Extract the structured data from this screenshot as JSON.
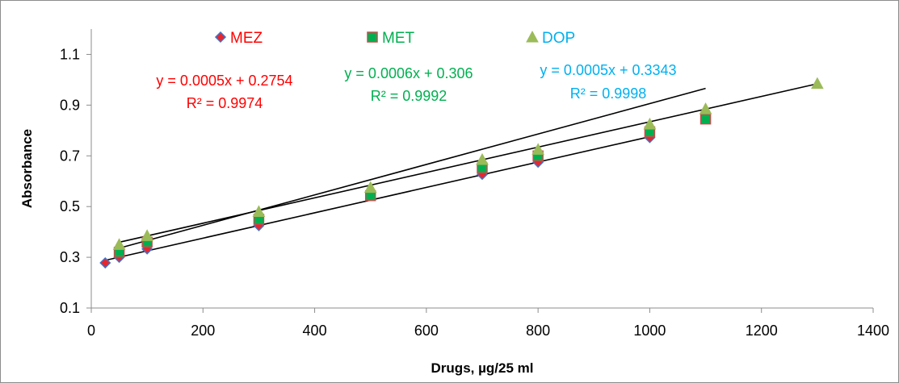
{
  "chart_data": {
    "type": "scatter",
    "title": "",
    "xlabel": "Drugs, µg/25 ml",
    "ylabel": "Absorbance",
    "xlim": [
      0,
      1400
    ],
    "ylim": [
      0.1,
      1.2
    ],
    "x_ticks": [
      0,
      200,
      400,
      600,
      800,
      1000,
      1200,
      1400
    ],
    "y_ticks": [
      0.1,
      0.3,
      0.5,
      0.7,
      0.9,
      1.1
    ],
    "x_tick_labels": [
      "0",
      "200",
      "400",
      "600",
      "800",
      "1000",
      "1200",
      "1400"
    ],
    "y_tick_labels": [
      "0.1",
      "0.3",
      "0.5",
      "0.7",
      "0.9",
      "1.1"
    ],
    "grid": false,
    "legend_position": "top",
    "series": [
      {
        "name": "MEZ",
        "color": "#e8262c",
        "edge_color": "#4472c4",
        "marker": "diamond",
        "points": [
          [
            25,
            0.278
          ],
          [
            50,
            0.3
          ],
          [
            100,
            0.333
          ],
          [
            300,
            0.425
          ],
          [
            700,
            0.627
          ],
          [
            800,
            0.675
          ],
          [
            1000,
            0.772
          ]
        ],
        "trendline": {
          "slope": 0.0005,
          "intercept": 0.2754,
          "x_range": [
            25,
            1000
          ]
        },
        "equation": "y = 0.0005x + 0.2754",
        "r_squared": "R² = 0.9974"
      },
      {
        "name": "MET",
        "color": "#00b050",
        "edge_color": "#c0504d",
        "marker": "square",
        "points": [
          [
            50,
            0.32
          ],
          [
            100,
            0.36
          ],
          [
            300,
            0.45
          ],
          [
            500,
            0.543
          ],
          [
            700,
            0.652
          ],
          [
            800,
            0.7
          ],
          [
            1000,
            0.795
          ],
          [
            1100,
            0.845
          ]
        ],
        "trendline": {
          "slope": 0.0006,
          "intercept": 0.306,
          "x_range": [
            50,
            1100
          ]
        },
        "equation": "y = 0.0006x + 0.306",
        "r_squared": "R² = 0.9992"
      },
      {
        "name": "DOP",
        "color": "#9bbb59",
        "edge_color": "#9bbb59",
        "marker": "triangle",
        "points": [
          [
            50,
            0.35
          ],
          [
            100,
            0.385
          ],
          [
            300,
            0.48
          ],
          [
            500,
            0.575
          ],
          [
            700,
            0.685
          ],
          [
            800,
            0.725
          ],
          [
            1000,
            0.825
          ],
          [
            1100,
            0.885
          ],
          [
            1300,
            0.985
          ]
        ],
        "trendline": {
          "slope": 0.0005,
          "intercept": 0.3343,
          "x_range": [
            50,
            1300
          ]
        },
        "equation": "y = 0.0005x + 0.3343",
        "r_squared": "R² = 0.9998"
      }
    ],
    "label_colors": {
      "MEZ": "#ff0000",
      "MET": "#00b050",
      "DOP": "#00b0f0"
    }
  }
}
